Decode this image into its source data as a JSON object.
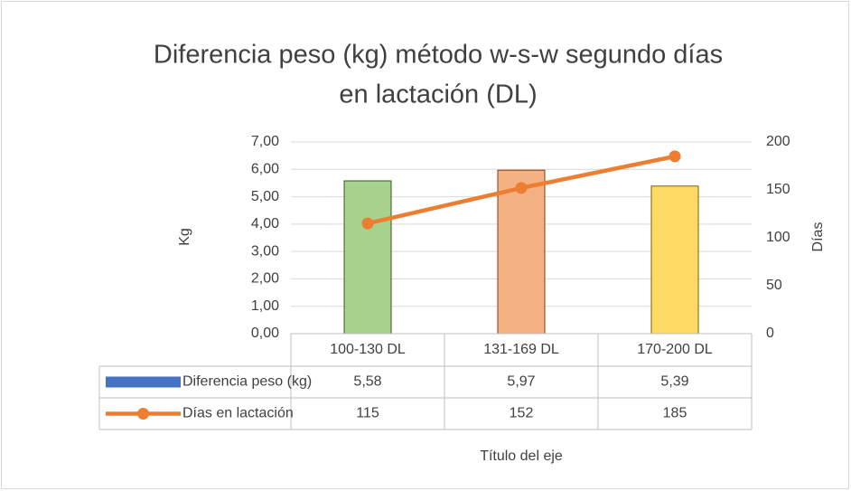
{
  "chart_data": {
    "type": "bar",
    "title_lines": [
      "Diferencia peso (kg) método w-s-w segundo días",
      "en lactación (DL)"
    ],
    "y_label": "Kg",
    "y2_label": "Días",
    "x_label": "Título del eje",
    "categories": [
      "100-130 DL",
      "131-169 DL",
      "170-200 DL"
    ],
    "series": [
      {
        "name": "Diferencia peso (kg)",
        "type": "bar",
        "color": "#4472c4",
        "point_colors": [
          "#a9d18e",
          "#f4b183",
          "#ffd966"
        ],
        "point_borders": [
          "#385723",
          "#843c0c",
          "#7f6000"
        ],
        "values": [
          5.58,
          5.97,
          5.39
        ],
        "value_labels": [
          "5,58",
          "5,97",
          "5,39"
        ]
      },
      {
        "name": "Días en lactación",
        "type": "line",
        "color": "#ed7d31",
        "axis": "y2",
        "values": [
          115,
          152,
          185
        ]
      }
    ],
    "ylim": [
      0,
      7
    ],
    "yticks": [
      {
        "value": 0,
        "label": "0,00"
      },
      {
        "value": 1,
        "label": "1,00"
      },
      {
        "value": 2,
        "label": "2,00"
      },
      {
        "value": 3,
        "label": "3,00"
      },
      {
        "value": 4,
        "label": "4,00"
      },
      {
        "value": 5,
        "label": "5,00"
      },
      {
        "value": 6,
        "label": "6,00"
      },
      {
        "value": 7,
        "label": "7,00"
      }
    ],
    "y2lim": [
      0,
      200
    ],
    "y2ticks": [
      0,
      50,
      100,
      150,
      200
    ],
    "grid": true,
    "data_table": true
  }
}
